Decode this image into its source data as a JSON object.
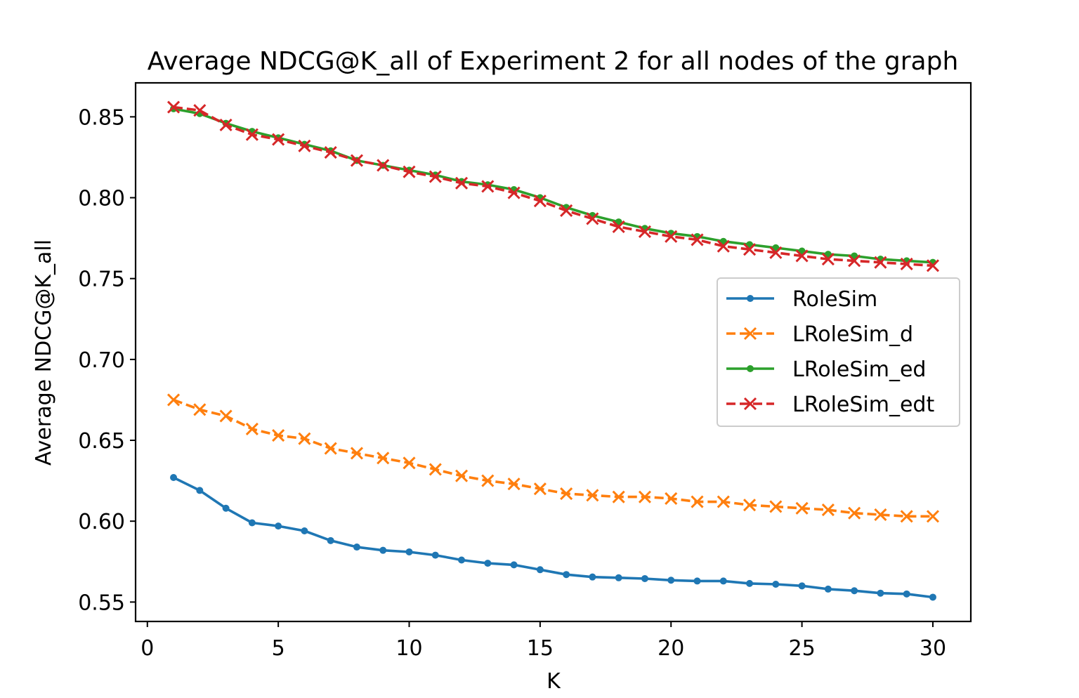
{
  "chart_data": {
    "type": "line",
    "title": "Average NDCG@K_all of Experiment 2 for all nodes of the graph",
    "xlabel": "K",
    "ylabel": "Average NDCG@K_all",
    "xlim": [
      -0.45,
      31.45
    ],
    "ylim": [
      0.538,
      0.871
    ],
    "xticks": [
      0,
      5,
      10,
      15,
      20,
      25,
      30
    ],
    "xtick_labels": [
      "0",
      "5",
      "10",
      "15",
      "20",
      "25",
      "30"
    ],
    "yticks": [
      0.55,
      0.6,
      0.65,
      0.7,
      0.75,
      0.8,
      0.85
    ],
    "ytick_labels": [
      "0.55",
      "0.60",
      "0.65",
      "0.70",
      "0.75",
      "0.80",
      "0.85"
    ],
    "grid": false,
    "legend_position": "center-right",
    "x": [
      1,
      2,
      3,
      4,
      5,
      6,
      7,
      8,
      9,
      10,
      11,
      12,
      13,
      14,
      15,
      16,
      17,
      18,
      19,
      20,
      21,
      22,
      23,
      24,
      25,
      26,
      27,
      28,
      29,
      30
    ],
    "series": [
      {
        "name": "RoleSim",
        "color": "#1f77b4",
        "linestyle": "solid",
        "marker": "dot",
        "values": [
          0.627,
          0.619,
          0.608,
          0.599,
          0.597,
          0.594,
          0.588,
          0.584,
          0.582,
          0.581,
          0.579,
          0.576,
          0.574,
          0.573,
          0.57,
          0.567,
          0.5655,
          0.565,
          0.5645,
          0.5635,
          0.563,
          0.563,
          0.5615,
          0.561,
          0.56,
          0.558,
          0.557,
          0.5555,
          0.555,
          0.553
        ]
      },
      {
        "name": "LRoleSim_d",
        "color": "#ff7f0e",
        "linestyle": "dashed",
        "marker": "x",
        "values": [
          0.675,
          0.669,
          0.665,
          0.657,
          0.653,
          0.651,
          0.645,
          0.642,
          0.639,
          0.636,
          0.632,
          0.628,
          0.625,
          0.623,
          0.62,
          0.617,
          0.616,
          0.615,
          0.615,
          0.614,
          0.612,
          0.612,
          0.61,
          0.609,
          0.608,
          0.607,
          0.605,
          0.604,
          0.603,
          0.603
        ]
      },
      {
        "name": "LRoleSim_ed",
        "color": "#2ca02c",
        "linestyle": "solid",
        "marker": "dot",
        "values": [
          0.855,
          0.852,
          0.846,
          0.841,
          0.837,
          0.833,
          0.829,
          0.823,
          0.82,
          0.817,
          0.814,
          0.81,
          0.808,
          0.805,
          0.8,
          0.794,
          0.789,
          0.785,
          0.781,
          0.778,
          0.776,
          0.773,
          0.771,
          0.769,
          0.767,
          0.765,
          0.764,
          0.762,
          0.761,
          0.76
        ]
      },
      {
        "name": "LRoleSim_edt",
        "color": "#d62728",
        "linestyle": "dashed",
        "marker": "x",
        "values": [
          0.856,
          0.854,
          0.845,
          0.839,
          0.836,
          0.832,
          0.828,
          0.823,
          0.82,
          0.816,
          0.813,
          0.809,
          0.807,
          0.803,
          0.798,
          0.792,
          0.787,
          0.782,
          0.779,
          0.776,
          0.774,
          0.77,
          0.768,
          0.766,
          0.764,
          0.762,
          0.761,
          0.76,
          0.759,
          0.758
        ]
      }
    ]
  }
}
